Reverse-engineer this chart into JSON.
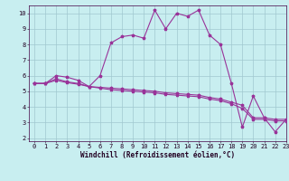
{
  "xlabel": "Windchill (Refroidissement éolien,°C)",
  "bg_color": "#c8eef0",
  "grid_color": "#a0c8d0",
  "line_color": "#993399",
  "x_ticks": [
    0,
    1,
    2,
    3,
    4,
    5,
    6,
    7,
    8,
    9,
    10,
    11,
    12,
    13,
    14,
    15,
    16,
    17,
    18,
    19,
    20,
    21,
    22,
    23
  ],
  "ylim": [
    1.8,
    10.5
  ],
  "xlim": [
    -0.5,
    23
  ],
  "line1_x": [
    0,
    1,
    2,
    3,
    4,
    5,
    6,
    7,
    8,
    9,
    10,
    11,
    12,
    13,
    14,
    15,
    16,
    17,
    18,
    19,
    20,
    21,
    22,
    23
  ],
  "line1_y": [
    5.5,
    5.5,
    6.0,
    5.9,
    5.7,
    5.3,
    6.0,
    8.1,
    8.5,
    8.6,
    8.4,
    10.2,
    9.0,
    10.0,
    9.8,
    10.2,
    8.6,
    8.0,
    5.5,
    2.7,
    4.7,
    3.3,
    2.4,
    3.2
  ],
  "line2_x": [
    0,
    1,
    2,
    3,
    4,
    5,
    6,
    7,
    8,
    9,
    10,
    11,
    12,
    13,
    14,
    15,
    16,
    17,
    18,
    19,
    20,
    21,
    22,
    23
  ],
  "line2_y": [
    5.5,
    5.5,
    5.8,
    5.6,
    5.5,
    5.3,
    5.25,
    5.2,
    5.15,
    5.1,
    5.05,
    5.0,
    4.9,
    4.85,
    4.8,
    4.75,
    4.6,
    4.5,
    4.3,
    4.1,
    3.3,
    3.3,
    3.2,
    3.2
  ],
  "line3_x": [
    0,
    1,
    2,
    3,
    4,
    5,
    6,
    7,
    8,
    9,
    10,
    11,
    12,
    13,
    14,
    15,
    16,
    17,
    18,
    19,
    20,
    21,
    22,
    23
  ],
  "line3_y": [
    5.5,
    5.5,
    5.7,
    5.55,
    5.45,
    5.3,
    5.2,
    5.1,
    5.05,
    5.0,
    4.95,
    4.9,
    4.8,
    4.75,
    4.7,
    4.65,
    4.5,
    4.4,
    4.2,
    3.9,
    3.2,
    3.2,
    3.1,
    3.1
  ],
  "font_size": 5.5,
  "tick_font_size": 5.0
}
